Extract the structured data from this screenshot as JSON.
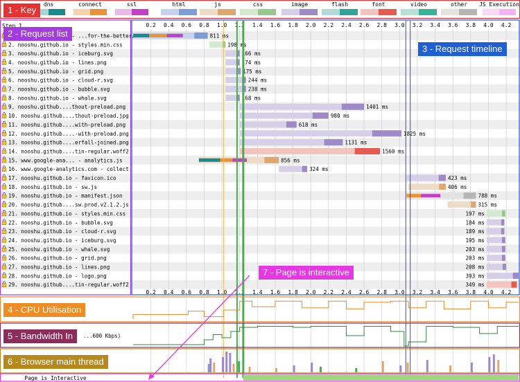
{
  "legend": [
    {
      "label": "dns",
      "color": "#1b8a8a",
      "light": "#a9d4d4"
    },
    {
      "label": "connect",
      "color": "#ea9236",
      "light": "#f6d3ae"
    },
    {
      "label": "ssl",
      "color": "#c53ec8",
      "light": "#e8b9e9"
    },
    {
      "label": "html",
      "color": "#7c9dd6",
      "light": "#c5d3ef"
    },
    {
      "label": "js",
      "color": "#dfa76e",
      "light": "#f0dcc6"
    },
    {
      "label": "css",
      "color": "#97c98e",
      "light": "#d3ead0"
    },
    {
      "label": "image",
      "color": "#9d8ac6",
      "light": "#d6cfe8"
    },
    {
      "label": "flash",
      "color": "#31a39b",
      "light": "#b0dbd8"
    },
    {
      "label": "font",
      "color": "#e65a4f",
      "light": "#f3c3bd"
    },
    {
      "label": "video",
      "color": "#38b19a",
      "light": "#b5e1d8"
    },
    {
      "label": "other",
      "color": "#b5b5b5",
      "light": "#e3e3e3"
    },
    {
      "label": "JS Execution",
      "color": "#f5b2f0",
      "light": "#fad9f7"
    }
  ],
  "step_label": "Step 1",
  "ticks": [
    "0.2",
    "0.4",
    "0.6",
    "0.8",
    "1.0",
    "1.2",
    "1.4",
    "1.6",
    "1.8",
    "2.0",
    "2.2",
    "2.4",
    "2.6",
    "2.8",
    "3.0",
    "3.2",
    "3.4",
    "3.6",
    "3.8",
    "4.0",
    "4.2"
  ],
  "timeline_max_s": 4.34,
  "markers": [
    {
      "t": 1.02,
      "color": "#f0b44a",
      "width": 1
    },
    {
      "t": 1.17,
      "color": "#44b04c",
      "width": 2
    },
    {
      "t": 1.24,
      "color": "#44b04c",
      "width": 3
    },
    {
      "t": 3.07,
      "color": "#3a47c9",
      "width": 1
    },
    {
      "t": 3.12,
      "color": "#3a47c9",
      "width": 1
    }
  ],
  "requests": [
    {
      "n": "1.",
      "name": "nooshu.github.io - ...for-the-better/",
      "type": "html",
      "lock": true,
      "start": 0.0,
      "end": 0.84,
      "segs": [
        {
          "t": "dns",
          "a": 0.0,
          "b": 0.18
        },
        {
          "t": "connect",
          "a": 0.18,
          "b": 0.38
        },
        {
          "t": "ssl",
          "a": 0.38,
          "b": 0.56
        }
      ],
      "dur": "811 ms"
    },
    {
      "n": "2.",
      "name": "nooshu.github.io - styles.min.css",
      "type": "css",
      "lock": true,
      "start": 0.86,
      "end": 1.04,
      "segs": [],
      "dur": "198 ms"
    },
    {
      "n": "3.",
      "name": "nooshu.github.io - iceburg.svg",
      "type": "image",
      "lock": true,
      "start": 1.04,
      "end": 1.2,
      "segs": [],
      "dur": "166 ms"
    },
    {
      "n": "4.",
      "name": "nooshu.github.io - lines.png",
      "type": "image",
      "lock": true,
      "start": 1.04,
      "end": 1.2,
      "segs": [],
      "dur": "174 ms"
    },
    {
      "n": "5.",
      "name": "nooshu.github.io - grid.png",
      "type": "image",
      "lock": true,
      "start": 1.04,
      "end": 1.21,
      "segs": [],
      "dur": "175 ms"
    },
    {
      "n": "6.",
      "name": "nooshu.github.io - cloud-r.svg",
      "type": "image",
      "lock": true,
      "start": 1.04,
      "end": 1.27,
      "segs": [],
      "dur": "244 ms"
    },
    {
      "n": "7.",
      "name": "nooshu.github.io - bubble.svg",
      "type": "image",
      "lock": true,
      "start": 1.04,
      "end": 1.27,
      "segs": [],
      "dur": "238 ms"
    },
    {
      "n": "8.",
      "name": "nooshu.github.io - whale.svg",
      "type": "image",
      "lock": true,
      "start": 1.04,
      "end": 1.2,
      "segs": [],
      "dur": "168 ms"
    },
    {
      "n": "9.",
      "name": "nooshu.github....thout-preload.png",
      "type": "image",
      "lock": true,
      "start": 1.2,
      "end": 2.6,
      "segs": [],
      "dur": "1401 ms"
    },
    {
      "n": "10.",
      "name": "nooshu.github....thout-preload.jpg",
      "type": "image",
      "lock": true,
      "start": 1.2,
      "end": 2.2,
      "segs": [],
      "dur": "980 ms"
    },
    {
      "n": "11.",
      "name": "nooshu.github....with-preload.png",
      "type": "image",
      "lock": true,
      "start": 1.2,
      "end": 1.84,
      "segs": [],
      "dur": "618 ms"
    },
    {
      "n": "12.",
      "name": "nooshu.github....-with-preload.png",
      "type": "image",
      "lock": true,
      "start": 1.2,
      "end": 3.02,
      "segs": [],
      "dur": "1825 ms"
    },
    {
      "n": "13.",
      "name": "nooshu.github....erfall-joined.png",
      "type": "image",
      "lock": true,
      "start": 1.2,
      "end": 2.36,
      "segs": [],
      "dur": "1131 ms"
    },
    {
      "n": "14.",
      "name": "nooshu.github....tin-regular.woff2",
      "type": "font",
      "lock": true,
      "start": 1.2,
      "end": 2.78,
      "segs": [],
      "dur": "1560 ms"
    },
    {
      "n": "15.",
      "name": "www.google-ana... - analytics.js",
      "type": "js",
      "lock": true,
      "start": 0.74,
      "end": 1.64,
      "segs": [
        {
          "t": "dns",
          "a": 0.74,
          "b": 0.98
        },
        {
          "t": "connect",
          "a": 0.98,
          "b": 1.12
        },
        {
          "t": "ssl",
          "a": 1.12,
          "b": 1.28
        }
      ],
      "dur": "856 ms"
    },
    {
      "n": "16.",
      "name": "www.google-analytics.com - collect",
      "type": "image",
      "lock": true,
      "start": 1.64,
      "end": 1.96,
      "segs": [],
      "dur": "324 ms"
    },
    {
      "n": "17.",
      "name": "nooshu.github.io - favicon.ico",
      "type": "image",
      "lock": true,
      "start": 3.08,
      "end": 3.52,
      "segs": [],
      "dur": "423 ms"
    },
    {
      "n": "18.",
      "name": "nooshu.github.io - sw.js",
      "type": "js",
      "lock": true,
      "start": 3.1,
      "end": 3.52,
      "segs": [],
      "dur": "406 ms"
    },
    {
      "n": "19.",
      "name": "nooshu.github.io - manifest.json",
      "type": "other",
      "lock": true,
      "start": 3.08,
      "end": 3.86,
      "segs": [
        {
          "t": "connect",
          "a": 3.08,
          "b": 3.24
        },
        {
          "t": "ssl",
          "a": 3.24,
          "b": 3.46
        }
      ],
      "dur": "788 ms"
    },
    {
      "n": "20.",
      "name": "nooshu.github....sw.prod.v2.1.2.js",
      "type": "js",
      "lock": true,
      "start": 3.54,
      "end": 3.86,
      "segs": [],
      "dur": "315 ms"
    },
    {
      "n": "21.",
      "name": "nooshu.github.io - styles.min.css",
      "type": "css",
      "lock": true,
      "start": 3.98,
      "end": 4.19,
      "segs": [],
      "dur": "197 ms"
    },
    {
      "n": "22.",
      "name": "nooshu.github.io - bubble.svg",
      "type": "image",
      "lock": true,
      "start": 3.98,
      "end": 4.18,
      "segs": [],
      "dur": "184 ms"
    },
    {
      "n": "23.",
      "name": "nooshu.github.io - cloud-r.svg",
      "type": "image",
      "lock": true,
      "start": 3.98,
      "end": 4.18,
      "segs": [],
      "dur": "189 ms"
    },
    {
      "n": "24.",
      "name": "nooshu.github.io - iceburg.svg",
      "type": "image",
      "lock": true,
      "start": 3.98,
      "end": 4.19,
      "segs": [],
      "dur": "195 ms"
    },
    {
      "n": "25.",
      "name": "nooshu.github.io - whale.svg",
      "type": "image",
      "lock": true,
      "start": 3.98,
      "end": 4.19,
      "segs": [],
      "dur": "203 ms"
    },
    {
      "n": "26.",
      "name": "nooshu.github.io - grid.png",
      "type": "image",
      "lock": true,
      "start": 3.98,
      "end": 4.19,
      "segs": [],
      "dur": "203 ms"
    },
    {
      "n": "27.",
      "name": "nooshu.github.io - lines.png",
      "type": "image",
      "lock": true,
      "start": 3.98,
      "end": 4.2,
      "segs": [],
      "dur": "208 ms"
    },
    {
      "n": "28.",
      "name": "nooshu.github.io - logo.png",
      "type": "image",
      "lock": true,
      "start": 3.98,
      "end": 4.34,
      "segs": [],
      "dur": "393 ms"
    },
    {
      "n": "29.",
      "name": "nooshu.github....tin-regular.woff2",
      "type": "font",
      "lock": true,
      "start": 3.98,
      "end": 4.32,
      "segs": [],
      "dur": "349 ms"
    }
  ],
  "bandwidth_label": "...600 Kbps)",
  "interactive_label": "Page is Interactive",
  "interactive_start_s": 1.24,
  "callouts": [
    {
      "text": "1 - Key",
      "color": "#e83232"
    },
    {
      "text": "2 - Request list",
      "color": "#a43be0"
    },
    {
      "text": "3 - Request timeline",
      "color": "#1f5fd6"
    },
    {
      "text": "4 - CPU Utilisation",
      "color": "#ef8c24"
    },
    {
      "text": "5 - Bandwidth In",
      "color": "#8c2c5a"
    },
    {
      "text": "6 - Browser main thread",
      "color": "#b7891a"
    },
    {
      "text": "7 - Page is interactive",
      "color": "#e538e3"
    }
  ],
  "colors": {
    "grid": "#c8c8c8",
    "cpu": "#e88a28",
    "bw": "#2f8a3a",
    "interactive": "#9fd67f",
    "rowalt": "#eeeeee"
  }
}
